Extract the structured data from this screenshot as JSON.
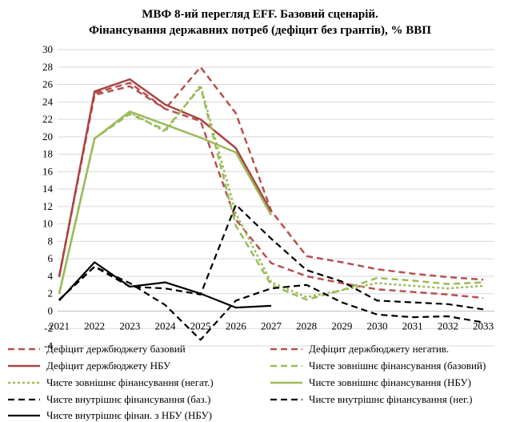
{
  "chart_data": {
    "type": "line",
    "title": "МВФ 8-ий перегляд EFF. Базовий сценарій.",
    "subtitle": "Фінансування державних потреб (дефіцит без грантів), % ВВП",
    "xlabel": "",
    "ylabel": "",
    "categories": [
      "2021",
      "2022",
      "2023",
      "2024",
      "2025",
      "2026",
      "2027",
      "2028",
      "2029",
      "2030",
      "2031",
      "2032",
      "2033"
    ],
    "ylim": [
      -4,
      30
    ],
    "yticks": [
      -4,
      -2,
      0,
      2,
      4,
      6,
      8,
      10,
      12,
      14,
      16,
      18,
      20,
      22,
      24,
      26,
      28,
      30
    ],
    "grid": "horizontal",
    "legend_position": "bottom",
    "series": [
      {
        "name": "Дефіцит держбюджету базовий",
        "color": "#b5514f",
        "dash": "dashed",
        "width": 2.5,
        "values": [
          4.0,
          24.8,
          25.8,
          23.2,
          21.8,
          10.5,
          5.5,
          4.0,
          3.2,
          2.5,
          2.2,
          1.9,
          1.5
        ]
      },
      {
        "name": "Дефіцит держбюджету негатив.",
        "color": "#b5514f",
        "dash": "dashed",
        "width": 2.5,
        "values": [
          4.0,
          25.0,
          26.2,
          23.2,
          28.0,
          22.7,
          11.5,
          6.3,
          5.6,
          4.8,
          4.3,
          3.9,
          3.6
        ]
      },
      {
        "name": "Дефіцит держбюджету НБУ",
        "color": "#a84542",
        "dash": "solid",
        "width": 2.5,
        "values": [
          3.9,
          25.2,
          26.6,
          23.7,
          22.0,
          18.7,
          11.4,
          null,
          null,
          null,
          null,
          null,
          null
        ]
      },
      {
        "name": "Чисте зовнішнє фінансування (базовий)",
        "color": "#9bbb59",
        "dash": "dashed",
        "width": 2.5,
        "values": [
          2.0,
          19.8,
          22.6,
          20.8,
          25.7,
          9.8,
          3.0,
          1.3,
          2.4,
          3.8,
          3.5,
          3.1,
          3.3
        ]
      },
      {
        "name": "Чисте зовнішнє фінансування (негат.)",
        "color": "#9bbb59",
        "dash": "dotted",
        "width": 2.5,
        "values": [
          2.0,
          19.8,
          22.8,
          20.6,
          25.9,
          11.2,
          3.3,
          1.6,
          2.4,
          3.2,
          2.9,
          2.6,
          2.9
        ]
      },
      {
        "name": "Чисте зовнішнє фінансування (НБУ)",
        "color": "#9bbb59",
        "dash": "solid",
        "width": 2.5,
        "values": [
          2.0,
          19.8,
          22.9,
          21.4,
          19.9,
          18.2,
          11.0,
          null,
          null,
          null,
          null,
          null,
          null
        ]
      },
      {
        "name": "Чисте внутрішнє фінансування (баз.)",
        "color": "#000000",
        "dash": "dashed",
        "width": 2.2,
        "values": [
          1.3,
          5.1,
          3.2,
          0.7,
          -3.3,
          1.2,
          2.6,
          3.0,
          1.0,
          -0.4,
          -0.7,
          -0.6,
          -1.3
        ]
      },
      {
        "name": "Чисте внутрішнє фінансування (нег.)",
        "color": "#000000",
        "dash": "dashed",
        "width": 2.2,
        "values": [
          1.3,
          5.1,
          2.8,
          2.6,
          1.9,
          12.2,
          8.3,
          4.7,
          3.4,
          1.2,
          1.0,
          0.8,
          0.2
        ]
      },
      {
        "name": "Чисте внутрішнє фінан. з НБУ (НБУ)",
        "color": "#000000",
        "dash": "solid",
        "width": 2.2,
        "values": [
          1.2,
          5.6,
          2.8,
          3.3,
          2.0,
          0.4,
          0.6,
          null,
          null,
          null,
          null,
          null,
          null
        ]
      }
    ]
  }
}
